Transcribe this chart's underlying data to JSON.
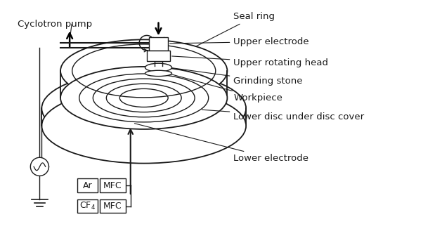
{
  "bg_color": "#ffffff",
  "line_color": "#1a1a1a",
  "labels": {
    "seal_ring": "Seal ring",
    "upper_electrode": "Upper electrode",
    "upper_rotating_head": "Upper rotating head",
    "grinding_stone": "Grinding stone",
    "workpiece": "Workpiece",
    "lower_disc": "Lower disc under disc cover",
    "lower_electrode": "Lower electrode",
    "cyclotron_pump": "Cyclotron pump",
    "ar": "Ar",
    "cf4": "CF$_4$",
    "mfc1": "MFC",
    "mfc2": "MFC"
  },
  "fig_width": 6.29,
  "fig_height": 3.56,
  "dpi": 100
}
